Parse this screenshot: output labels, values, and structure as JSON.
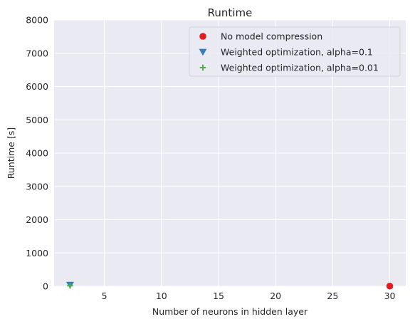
{
  "chart_data": {
    "type": "scatter",
    "title": "Runtime",
    "xlabel": "Number of neurons in hidden layer",
    "ylabel": "Runtime [s]",
    "xlim": [
      0.6,
      31.4
    ],
    "ylim": [
      0,
      8000
    ],
    "xticks": [
      5,
      10,
      15,
      20,
      25,
      30
    ],
    "yticks": [
      0,
      1000,
      2000,
      3000,
      4000,
      5000,
      6000,
      7000,
      8000
    ],
    "grid": true,
    "legend_position": "top-right",
    "series": [
      {
        "name": "No model compression",
        "marker": "circle",
        "color": "#e41a1c",
        "points": [
          {
            "x": 30,
            "y": 5
          }
        ]
      },
      {
        "name": "Weighted optimization, alpha=0.1",
        "marker": "triangle-down",
        "color": "#377eb8",
        "points": [
          {
            "x": 2,
            "y": 40
          }
        ]
      },
      {
        "name": "Weighted optimization, alpha=0.01",
        "marker": "plus",
        "color": "#4daf4a",
        "points": [
          {
            "x": 2,
            "y": 15
          }
        ]
      }
    ]
  }
}
